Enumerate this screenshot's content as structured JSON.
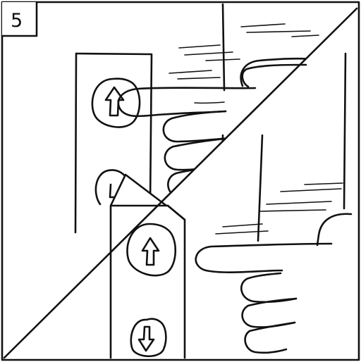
{
  "comic": {
    "panel_number": "5"
  }
}
